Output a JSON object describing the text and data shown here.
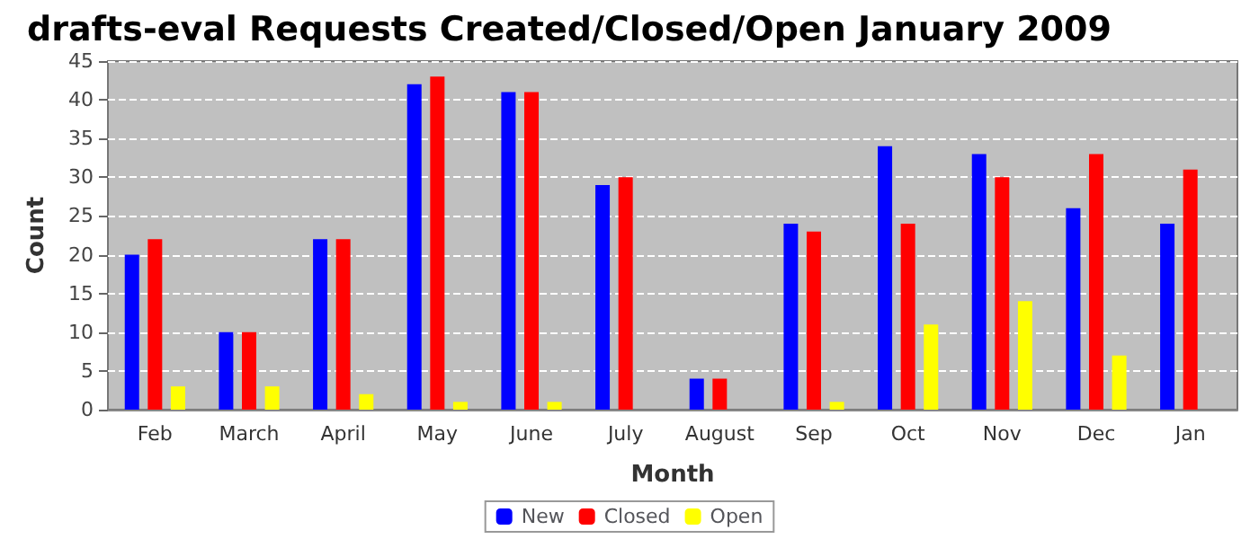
{
  "chart_data": {
    "type": "bar",
    "title": "drafts-eval Requests Created/Closed/Open January 2009",
    "xlabel": "Month",
    "ylabel": "Count",
    "categories": [
      "Feb",
      "March",
      "April",
      "May",
      "June",
      "July",
      "August",
      "Sep",
      "Oct",
      "Nov",
      "Dec",
      "Jan"
    ],
    "series": [
      {
        "name": "New",
        "color": "#0000ff",
        "values": [
          20,
          10,
          22,
          42,
          41,
          29,
          4,
          24,
          34,
          33,
          26,
          24
        ]
      },
      {
        "name": "Closed",
        "color": "#ff0000",
        "values": [
          22,
          10,
          22,
          43,
          41,
          30,
          4,
          23,
          24,
          30,
          33,
          31
        ]
      },
      {
        "name": "Open",
        "color": "#ffff00",
        "values": [
          3,
          3,
          2,
          1,
          1,
          0,
          0,
          1,
          11,
          14,
          7,
          0
        ]
      }
    ],
    "ylim": [
      0,
      45
    ],
    "yticks": [
      0,
      5,
      10,
      15,
      20,
      25,
      30,
      35,
      40,
      45
    ],
    "grid": "y",
    "legend": "bottom"
  }
}
